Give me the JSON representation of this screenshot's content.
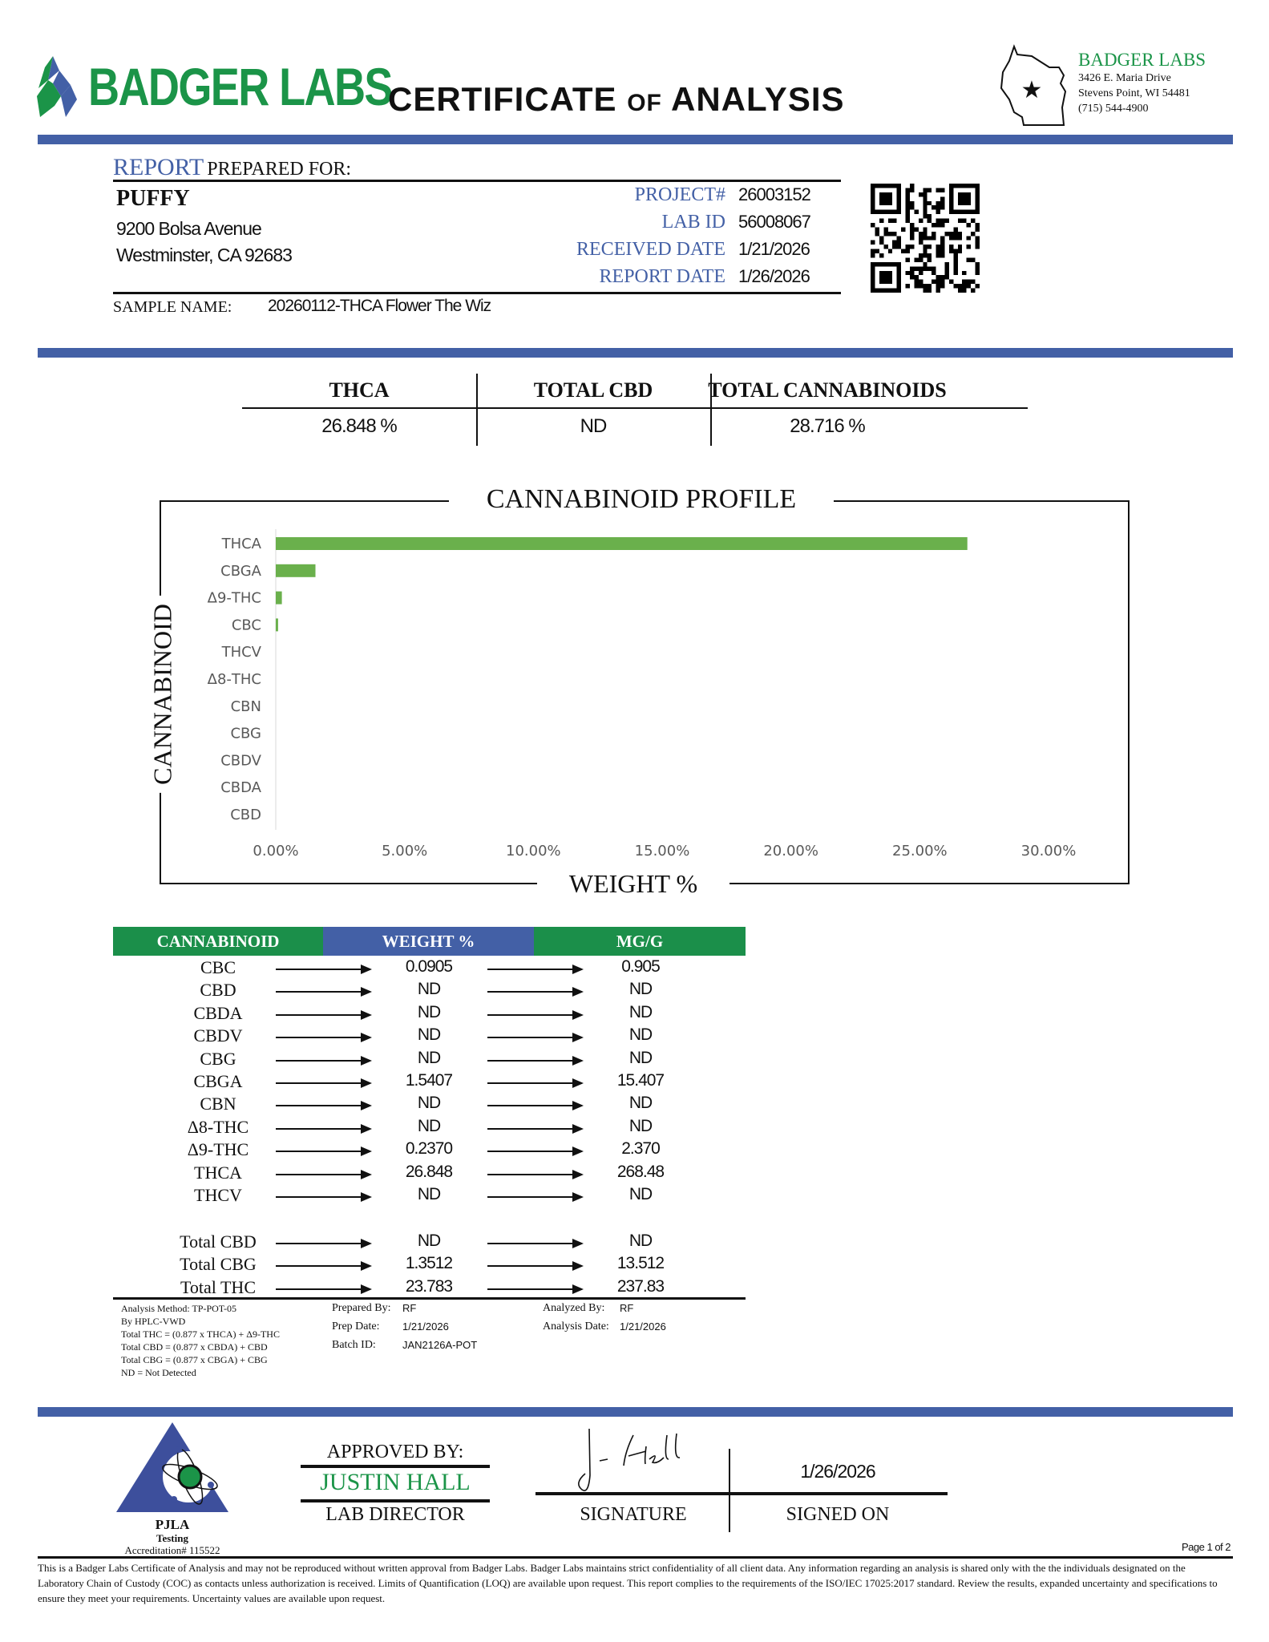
{
  "header": {
    "logo_text": "BADGER LABS",
    "title_main1": "CERTIFICATE",
    "title_of": "OF",
    "title_main2": "ANALYSIS",
    "lab_name": "BADGER LABS",
    "lab_address1": "3426 E. Maria Drive",
    "lab_address2": "Stevens Point, WI 54481",
    "lab_phone": "(715) 544-4900",
    "brand_color": "#1b9448",
    "accent_color": "#4360a6"
  },
  "report": {
    "label_report": "REPORT",
    "label_prepared": "PREPARED FOR:",
    "client_name": "PUFFY",
    "address1": "9200 Bolsa Avenue",
    "address2": "Westminster, CA 92683",
    "fields": [
      {
        "label": "PROJECT#",
        "value": "26003152"
      },
      {
        "label": "LAB ID",
        "value": "56008067"
      },
      {
        "label": "RECEIVED DATE",
        "value": "1/21/2026"
      },
      {
        "label": "REPORT DATE",
        "value": "1/26/2026"
      }
    ],
    "sample_label": "SAMPLE NAME:",
    "sample_name": "20260112-THCA Flower The Wiz"
  },
  "summary": [
    {
      "label": "THCA",
      "value": "26.848 %"
    },
    {
      "label": "TOTAL CBD",
      "value": "ND"
    },
    {
      "label": "TOTAL CANNABINOIDS",
      "value": "28.716 %"
    }
  ],
  "chart_data": {
    "type": "bar",
    "orientation": "horizontal",
    "title": "CANNABINOID PROFILE",
    "xlabel": "WEIGHT %",
    "ylabel": "CANNABINOID",
    "categories": [
      "THCA",
      "CBGA",
      "Δ9-THC",
      "CBC",
      "THCV",
      "Δ8-THC",
      "CBN",
      "CBG",
      "CBDV",
      "CBDA",
      "CBD"
    ],
    "values": [
      26.848,
      1.5407,
      0.237,
      0.0905,
      0,
      0,
      0,
      0,
      0,
      0,
      0
    ],
    "xlim": [
      0,
      30
    ],
    "xticks": [
      "0.00%",
      "5.00%",
      "10.00%",
      "15.00%",
      "20.00%",
      "25.00%",
      "30.00%"
    ],
    "bar_color": "#6ab04c",
    "grid": false
  },
  "table": {
    "headers": [
      "CANNABINOID",
      "WEIGHT %",
      "MG/G"
    ],
    "header_colors": [
      "#1b8f4a",
      "#4360a6",
      "#1b8f4a"
    ],
    "rows": [
      {
        "name": "CBC",
        "weight": "0.0905",
        "mgg": "0.905"
      },
      {
        "name": "CBD",
        "weight": "ND",
        "mgg": "ND"
      },
      {
        "name": "CBDA",
        "weight": "ND",
        "mgg": "ND"
      },
      {
        "name": "CBDV",
        "weight": "ND",
        "mgg": "ND"
      },
      {
        "name": "CBG",
        "weight": "ND",
        "mgg": "ND"
      },
      {
        "name": "CBGA",
        "weight": "1.5407",
        "mgg": "15.407"
      },
      {
        "name": "CBN",
        "weight": "ND",
        "mgg": "ND"
      },
      {
        "name": "Δ8-THC",
        "weight": "ND",
        "mgg": "ND"
      },
      {
        "name": "Δ9-THC",
        "weight": "0.2370",
        "mgg": "2.370"
      },
      {
        "name": "THCA",
        "weight": "26.848",
        "mgg": "268.48"
      },
      {
        "name": "THCV",
        "weight": "ND",
        "mgg": "ND"
      }
    ],
    "totals": [
      {
        "name": "Total CBD",
        "weight": "ND",
        "mgg": "ND"
      },
      {
        "name": "Total CBG",
        "weight": "1.3512",
        "mgg": "13.512"
      },
      {
        "name": "Total THC",
        "weight": "23.783",
        "mgg": "237.83"
      }
    ]
  },
  "notes": {
    "method": [
      "Analysis Method: TP-POT-05",
      "By HPLC-VWD",
      "Total THC = (0.877 x  THCA) + Δ9-THC",
      "Total CBD = (0.877 x  CBDA) + CBD",
      "Total CBG = (0.877 x  CBGA) + CBG",
      "ND = Not Detected"
    ],
    "prepared_by_label": "Prepared By:",
    "prepared_by": "RF",
    "prep_date_label": "Prep Date:",
    "prep_date": "1/21/2026",
    "batch_label": "Batch ID:",
    "batch": "JAN2126A-POT",
    "analyzed_by_label": "Analyzed By:",
    "analyzed_by": "RF",
    "analysis_date_label": "Analysis Date:",
    "analysis_date": "1/21/2026"
  },
  "approval": {
    "pjla": "PJLA",
    "testing": "Testing",
    "accreditation": "Accreditation# 115522",
    "approved_by": "APPROVED BY:",
    "approver": "JUSTIN HALL",
    "role": "LAB DIRECTOR",
    "signature_label": "SIGNATURE",
    "signed_date": "1/26/2026",
    "signed_on_label": "SIGNED ON",
    "page": "Page 1 of 2"
  },
  "footer": "This is a Badger Labs Certificate of Analysis and may not be reproduced without written approval from Badger Labs. Badger Labs maintains strict confidentiality of all client data. Any information regarding an analysis is shared only with the the individuals designated on the Laboratory Chain of Custody (COC) as contacts unless authorization is received. Limits of Quantification (LOQ) are available upon request. This report complies to the requirements of the ISO/IEC 17025:2017 standard. Review the results, expanded uncertainty and specifications to ensure they meet your requirements. Uncertainty values are available upon request."
}
